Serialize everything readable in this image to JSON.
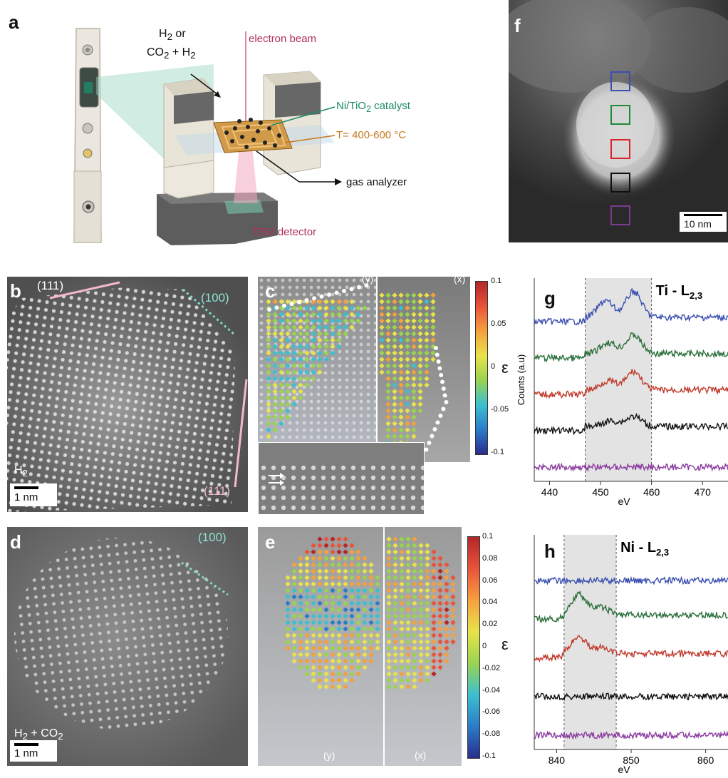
{
  "panels": {
    "a": "a",
    "b": "b",
    "c": "c",
    "d": "d",
    "e": "e",
    "f": "f",
    "g": "g",
    "h": "h"
  },
  "panel_a": {
    "gas_line1": "H",
    "gas_sub1": "2",
    "gas_or": " or",
    "gas_line2a": "CO",
    "gas_sub2": "2",
    "gas_plus": " + H",
    "gas_sub3": "2",
    "electron_beam": "electron beam",
    "catalyst_a": "Ni/TiO",
    "catalyst_sub": "2",
    "catalyst_b": " catalyst",
    "temperature": "T= 400-600 °C",
    "gas_analyzer": "gas analyzer",
    "detector": "TEM detector",
    "colors": {
      "beam": "#b0305a",
      "catalyst": "#1e8a6a",
      "temp": "#c8771c"
    }
  },
  "panel_b": {
    "facet_top": "(111)",
    "facet_100": "(100)",
    "facet_bottom": "(111)",
    "gas": "H",
    "gas_sub": "2",
    "scale": "1 nm"
  },
  "panel_c": {
    "comp_y": "(y)",
    "comp_x": "(x)",
    "colorbar_ticks": [
      "0.1",
      "0.05",
      "0",
      "-0.05",
      "-0.1"
    ],
    "colorbar_symbol": "ε"
  },
  "panel_d": {
    "facet_100": "(100)",
    "gas": "H",
    "gas_sub": "2",
    "gas_plus": " + CO",
    "gas_sub2": "2",
    "scale": "1 nm"
  },
  "panel_e": {
    "comp_y": "(y)",
    "comp_x": "(x)",
    "colorbar_ticks": [
      "0.1",
      "0.08",
      "0.06",
      "0.04",
      "0.02",
      "0",
      "-0.02",
      "-0.04",
      "-0.06",
      "-0.08",
      "-0.1"
    ],
    "colorbar_symbol": "ε"
  },
  "panel_f": {
    "scale": "10 nm",
    "box_colors": [
      "#3a4fb0",
      "#1f8a3a",
      "#d8232a",
      "#111111",
      "#7a3a8f"
    ]
  },
  "chart_data": [
    {
      "type": "line",
      "panel": "g",
      "title": "Ti - L",
      "title_sub": "2,3",
      "xlabel": "eV",
      "ylabel": "Counts (a.u)",
      "xlim": [
        437,
        475
      ],
      "x_ticks": [
        "440",
        "450",
        "460",
        "470"
      ],
      "shaded_range": [
        447,
        460
      ],
      "series": [
        {
          "color": "#3a4fb0",
          "offset": 4,
          "peaks": [
            [
              451,
              0.9
            ],
            [
              456.5,
              1.4
            ]
          ]
        },
        {
          "color": "#2a6e3a",
          "offset": 3,
          "peaks": [
            [
              451.5,
              0.6
            ],
            [
              456.5,
              1.0
            ]
          ]
        },
        {
          "color": "#c0392b",
          "offset": 2,
          "peaks": [
            [
              451.5,
              0.5
            ],
            [
              456.5,
              1.0
            ]
          ]
        },
        {
          "color": "#111111",
          "offset": 1,
          "peaks": [
            [
              452,
              0.3
            ],
            [
              456.5,
              0.55
            ]
          ]
        },
        {
          "color": "#8a3a9f",
          "offset": 0,
          "peaks": []
        }
      ]
    },
    {
      "type": "line",
      "panel": "h",
      "title": "Ni - L",
      "title_sub": "2,3",
      "xlabel": "eV",
      "ylabel": "",
      "xlim": [
        837,
        863
      ],
      "x_ticks": [
        "840",
        "850",
        "860"
      ],
      "shaded_range": [
        841,
        848
      ],
      "series": [
        {
          "color": "#3a4fb0",
          "offset": 4,
          "peaks": []
        },
        {
          "color": "#2a6e3a",
          "offset": 3,
          "peaks": [
            [
              843,
              1.1
            ],
            [
              846,
              0.4
            ]
          ]
        },
        {
          "color": "#c0392b",
          "offset": 2,
          "peaks": [
            [
              843,
              0.9
            ],
            [
              846,
              0.3
            ]
          ]
        },
        {
          "color": "#111111",
          "offset": 1,
          "peaks": []
        },
        {
          "color": "#8a3a9f",
          "offset": 0,
          "peaks": []
        }
      ]
    }
  ]
}
